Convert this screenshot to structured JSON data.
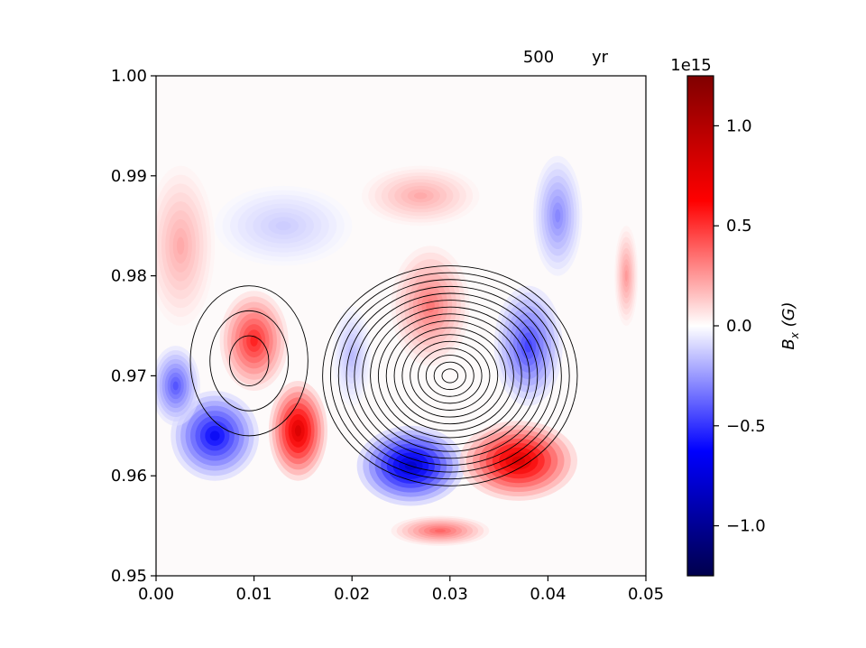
{
  "header": {
    "time_value": "500",
    "time_unit": "yr"
  },
  "chart_data": [
    {
      "type": "heatmap",
      "title": "",
      "xlabel": "",
      "ylabel": "",
      "xlim": [
        0.0,
        0.05
      ],
      "ylim": [
        0.95,
        1.0
      ],
      "x_ticks": [
        "0.00",
        "0.01",
        "0.02",
        "0.03",
        "0.04",
        "0.05"
      ],
      "y_ticks": [
        "0.95",
        "0.96",
        "0.97",
        "0.98",
        "0.99",
        "1.00"
      ],
      "field": "B_x",
      "colormap": "seismic",
      "colormap_stops": [
        "#00004c",
        "#0000ff",
        "#ffffff",
        "#ff0000",
        "#800000"
      ],
      "blobs": [
        {
          "cx": 0.01,
          "cy": 0.9735,
          "rx": 0.0035,
          "ry": 0.005,
          "v": 0.65
        },
        {
          "cx": 0.0025,
          "cy": 0.983,
          "rx": 0.0035,
          "ry": 0.008,
          "v": 0.25
        },
        {
          "cx": 0.0145,
          "cy": 0.9645,
          "rx": 0.003,
          "ry": 0.005,
          "v": 0.95
        },
        {
          "cx": 0.006,
          "cy": 0.964,
          "rx": 0.0045,
          "ry": 0.0045,
          "v": -0.75
        },
        {
          "cx": 0.002,
          "cy": 0.969,
          "rx": 0.0025,
          "ry": 0.004,
          "v": -0.5
        },
        {
          "cx": 0.026,
          "cy": 0.961,
          "rx": 0.0055,
          "ry": 0.004,
          "v": -0.95
        },
        {
          "cx": 0.037,
          "cy": 0.9615,
          "rx": 0.006,
          "ry": 0.004,
          "v": 0.95
        },
        {
          "cx": 0.038,
          "cy": 0.973,
          "rx": 0.0035,
          "ry": 0.006,
          "v": -0.55
        },
        {
          "cx": 0.041,
          "cy": 0.986,
          "rx": 0.0025,
          "ry": 0.006,
          "v": -0.35
        },
        {
          "cx": 0.028,
          "cy": 0.977,
          "rx": 0.004,
          "ry": 0.006,
          "v": 0.4
        },
        {
          "cx": 0.027,
          "cy": 0.988,
          "rx": 0.006,
          "ry": 0.003,
          "v": 0.25
        },
        {
          "cx": 0.013,
          "cy": 0.985,
          "rx": 0.007,
          "ry": 0.004,
          "v": -0.15
        },
        {
          "cx": 0.02,
          "cy": 0.972,
          "rx": 0.002,
          "ry": 0.005,
          "v": -0.2
        },
        {
          "cx": 0.029,
          "cy": 0.9545,
          "rx": 0.005,
          "ry": 0.0015,
          "v": 0.45
        },
        {
          "cx": 0.048,
          "cy": 0.98,
          "rx": 0.0012,
          "ry": 0.005,
          "v": 0.3
        }
      ],
      "contours": [
        {
          "cx": 0.03,
          "cy": 0.97,
          "levels": 16,
          "rx_max": 0.013,
          "ry_max": 0.011
        },
        {
          "cx": 0.0095,
          "cy": 0.9715,
          "levels": 3,
          "rx_max": 0.006,
          "ry_max": 0.0075
        }
      ],
      "colorbar": {
        "label": "B_x (G)",
        "exponent": "1e15",
        "vmin": -1.25,
        "vmax": 1.25,
        "ticks": [
          1.0,
          0.5,
          0.0,
          -0.5,
          -1.0
        ],
        "tick_labels": [
          "1.0",
          "0.5",
          "0.0",
          "−0.5",
          "−1.0"
        ]
      }
    }
  ]
}
